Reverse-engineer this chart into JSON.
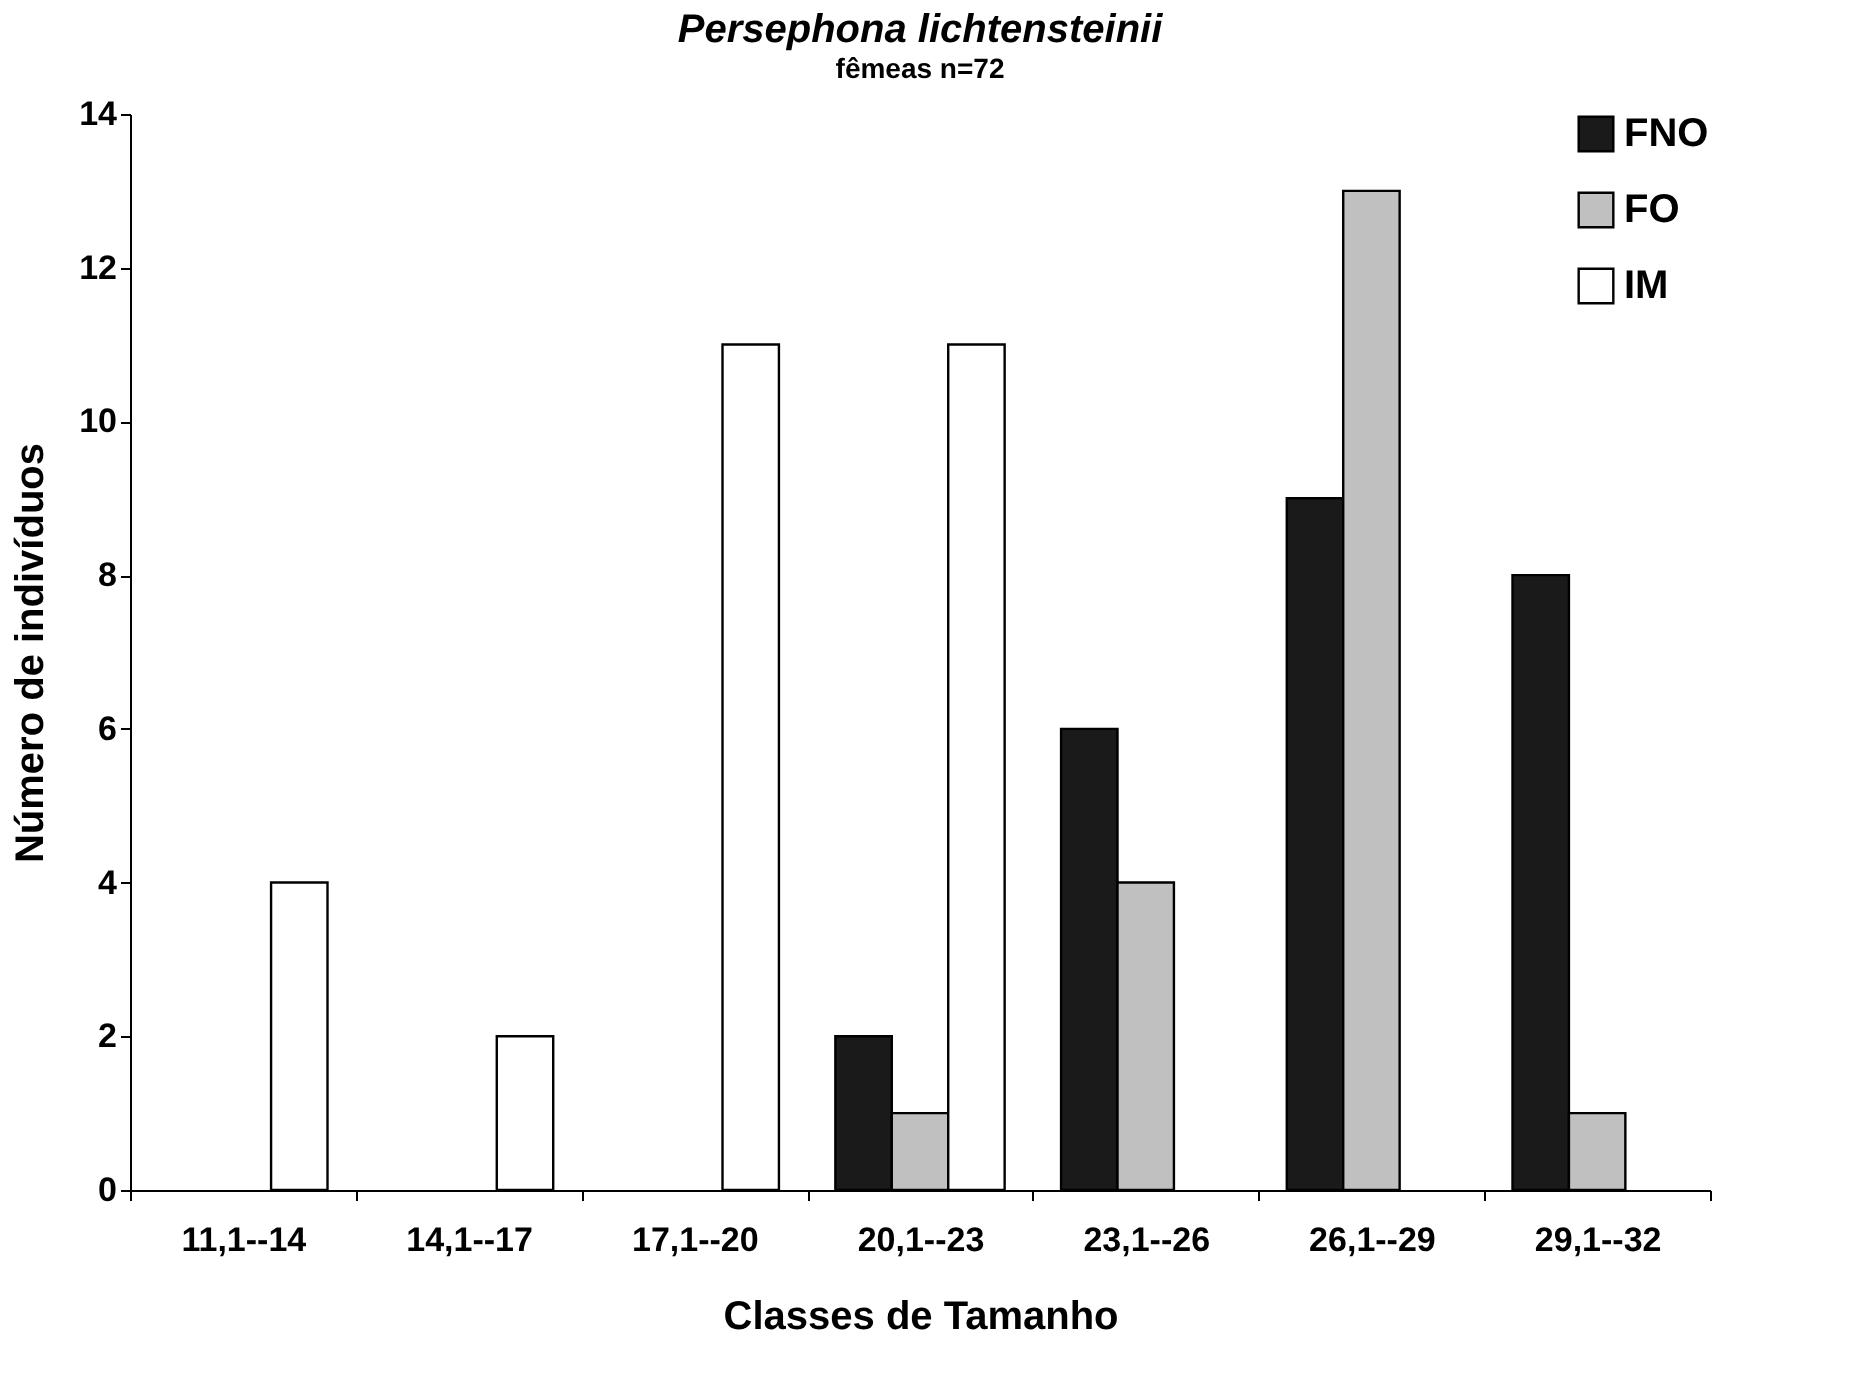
{
  "chart_data": {
    "type": "bar",
    "title": "Persephona lichtensteinii",
    "subtitle": "fêmeas n=72",
    "xlabel": "Classes de Tamanho",
    "ylabel": "Número de indivíduos",
    "categories": [
      "11,1--14",
      "14,1--17",
      "17,1--20",
      "20,1--23",
      "23,1--26",
      "26,1--29",
      "29,1--32"
    ],
    "series": [
      {
        "name": "FNO",
        "color": "#1a1a1a",
        "values": [
          null,
          null,
          null,
          2,
          6,
          9,
          8
        ]
      },
      {
        "name": "FO",
        "color": "#c0c0c0",
        "values": [
          null,
          null,
          null,
          1,
          4,
          13,
          1
        ]
      },
      {
        "name": "IM",
        "color": "#ffffff",
        "values": [
          4,
          2,
          11,
          11,
          null,
          null,
          null
        ]
      }
    ],
    "ylim": [
      0,
      14
    ],
    "yticks": [
      0,
      2,
      4,
      6,
      8,
      10,
      12,
      14
    ],
    "grid": false,
    "legend": "top right"
  }
}
